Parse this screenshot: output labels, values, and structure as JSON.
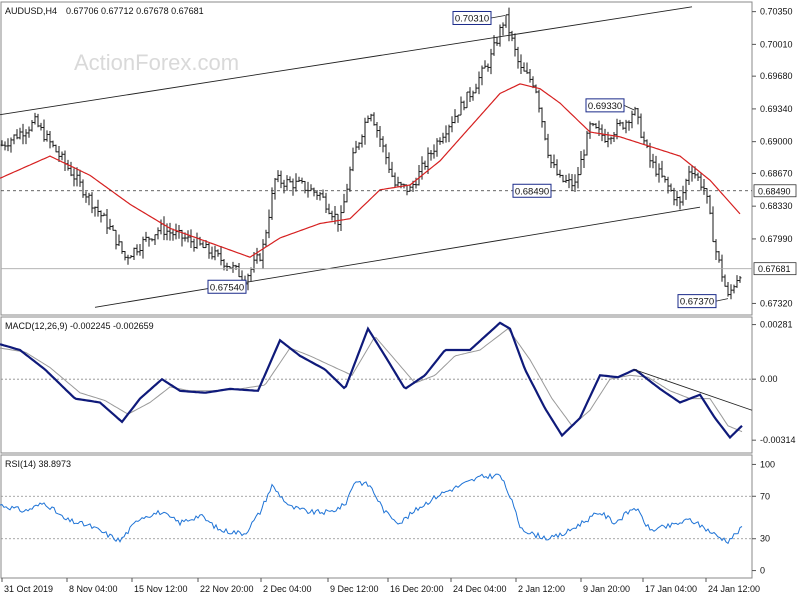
{
  "header": {
    "symbol_timeframe": "AUDUSD,H4",
    "ohlc": "0.67706 0.67712 0.67678 0.67681"
  },
  "watermark": "ActionForex.com",
  "colors": {
    "price": "#1a1a1a",
    "ma": "#d62020",
    "macd_line": "#0f1a7a",
    "signal": "#9a9a9a",
    "rsi": "#1e73d6",
    "grid": "#8c8c8c"
  },
  "chart_data": [
    {
      "type": "bar",
      "pane": "price",
      "title": "AUDUSD,H4",
      "ylim": [
        0.672,
        0.7045
      ],
      "y_ticks": [
        "0.70350",
        "0.70010",
        "0.69680",
        "0.69340",
        "0.69000",
        "0.68670",
        "0.68330",
        "0.67990",
        "0.67320"
      ],
      "x_ticks": [
        "31 Oct 2019",
        "8 Nov 04:00",
        "15 Nov 12:00",
        "22 Nov 20:00",
        "2 Dec 04:00",
        "9 Dec 12:00",
        "16 Dec 20:00",
        "24 Dec 04:00",
        "2 Jan 12:00",
        "9 Jan 20:00",
        "17 Jan 04:00",
        "24 Jan 12:00"
      ],
      "series": [
        {
          "name": "AUDUSD",
          "anchors": [
            [
              0,
              0.6895
            ],
            [
              35,
              0.692
            ],
            [
              70,
              0.687
            ],
            [
              110,
              0.681
            ],
            [
              125,
              0.678
            ],
            [
              160,
              0.681
            ],
            [
              195,
              0.6795
            ],
            [
              225,
              0.6775
            ],
            [
              245,
              0.6758
            ],
            [
              262,
              0.6785
            ],
            [
              275,
              0.686
            ],
            [
              300,
              0.6855
            ],
            [
              320,
              0.6845
            ],
            [
              340,
              0.6815
            ],
            [
              352,
              0.688
            ],
            [
              370,
              0.6935
            ],
            [
              395,
              0.6855
            ],
            [
              410,
              0.685
            ],
            [
              440,
              0.6905
            ],
            [
              470,
              0.695
            ],
            [
              490,
              0.6985
            ],
            [
              505,
              0.703
            ],
            [
              520,
              0.6975
            ],
            [
              535,
              0.696
            ],
            [
              550,
              0.688
            ],
            [
              560,
              0.686
            ],
            [
              575,
              0.6855
            ],
            [
              590,
              0.6915
            ],
            [
              605,
              0.6905
            ],
            [
              625,
              0.692
            ],
            [
              634,
              0.6933
            ],
            [
              650,
              0.688
            ],
            [
              670,
              0.685
            ],
            [
              680,
              0.6835
            ],
            [
              690,
              0.6875
            ],
            [
              705,
              0.685
            ],
            [
              715,
              0.679
            ],
            [
              728,
              0.6738
            ],
            [
              735,
              0.6755
            ],
            [
              742,
              0.6768
            ]
          ]
        },
        {
          "name": "MA",
          "anchors": [
            [
              0,
              0.6862
            ],
            [
              50,
              0.6885
            ],
            [
              90,
              0.6865
            ],
            [
              130,
              0.6835
            ],
            [
              170,
              0.681
            ],
            [
              210,
              0.6795
            ],
            [
              250,
              0.678
            ],
            [
              280,
              0.68
            ],
            [
              320,
              0.6815
            ],
            [
              350,
              0.682
            ],
            [
              380,
              0.685
            ],
            [
              410,
              0.6855
            ],
            [
              440,
              0.688
            ],
            [
              470,
              0.6915
            ],
            [
              500,
              0.695
            ],
            [
              520,
              0.696
            ],
            [
              540,
              0.6955
            ],
            [
              560,
              0.694
            ],
            [
              590,
              0.691
            ],
            [
              620,
              0.6905
            ],
            [
              650,
              0.6895
            ],
            [
              680,
              0.6885
            ],
            [
              710,
              0.686
            ],
            [
              740,
              0.6825
            ]
          ]
        }
      ],
      "annotations": [
        {
          "label": "0.70310",
          "x": 505,
          "value": 0.7031
        },
        {
          "label": "0.69330",
          "x": 634,
          "value": 0.6933
        },
        {
          "label": "0.68490",
          "x": 555,
          "value": 0.6849
        },
        {
          "label": "0.67540",
          "x": 245,
          "value": 0.6754
        },
        {
          "label": "0.67370",
          "x": 728,
          "value": 0.6737
        }
      ],
      "current_price_label": "0.67681",
      "level_label": "0.68490",
      "levels": [
        0.6849,
        0.67681
      ],
      "trendlines": [
        {
          "from": [
            0,
            0.6928
          ],
          "to": [
            692,
            0.704
          ]
        },
        {
          "from": [
            95,
            0.6728
          ],
          "to": [
            700,
            0.6832
          ]
        }
      ]
    },
    {
      "type": "line",
      "pane": "macd",
      "title": "MACD(12,26,9) -0.002245 -0.002659",
      "ylim": [
        -0.0038,
        0.0032
      ],
      "y_ticks": [
        "0.00281",
        "0.00",
        "-0.00314"
      ],
      "series": [
        {
          "name": "MACD",
          "anchors": [
            [
              0,
              0.0018
            ],
            [
              20,
              0.0015
            ],
            [
              45,
              0.0005
            ],
            [
              75,
              -0.001
            ],
            [
              100,
              -0.0012
            ],
            [
              122,
              -0.0022
            ],
            [
              140,
              -0.001
            ],
            [
              162,
              0.0
            ],
            [
              180,
              -0.0006
            ],
            [
              205,
              -0.0007
            ],
            [
              230,
              -0.0005
            ],
            [
              258,
              -0.0006
            ],
            [
              280,
              0.002
            ],
            [
              300,
              0.0012
            ],
            [
              325,
              0.0005
            ],
            [
              345,
              -0.0005
            ],
            [
              368,
              0.0026
            ],
            [
              385,
              0.0012
            ],
            [
              405,
              -0.0005
            ],
            [
              425,
              0.0002
            ],
            [
              445,
              0.0015
            ],
            [
              470,
              0.0015
            ],
            [
              500,
              0.0029
            ],
            [
              510,
              0.0026
            ],
            [
              525,
              0.0005
            ],
            [
              545,
              -0.0015
            ],
            [
              562,
              -0.0029
            ],
            [
              580,
              -0.002
            ],
            [
              600,
              0.0002
            ],
            [
              618,
              0.0001
            ],
            [
              635,
              0.0005
            ],
            [
              660,
              -0.0005
            ],
            [
              680,
              -0.0012
            ],
            [
              700,
              -0.0008
            ],
            [
              715,
              -0.002
            ],
            [
              730,
              -0.003
            ],
            [
              742,
              -0.0024
            ]
          ]
        },
        {
          "name": "Signal",
          "anchors": [
            [
              0,
              0.0016
            ],
            [
              25,
              0.0014
            ],
            [
              50,
              0.0006
            ],
            [
              80,
              -0.0007
            ],
            [
              105,
              -0.0011
            ],
            [
              128,
              -0.0018
            ],
            [
              150,
              -0.0012
            ],
            [
              170,
              -0.0004
            ],
            [
              190,
              -0.0006
            ],
            [
              215,
              -0.0006
            ],
            [
              240,
              -0.0005
            ],
            [
              265,
              -0.0003
            ],
            [
              290,
              0.0016
            ],
            [
              310,
              0.0012
            ],
            [
              335,
              0.0006
            ],
            [
              352,
              0.0002
            ],
            [
              375,
              0.0022
            ],
            [
              395,
              0.001
            ],
            [
              415,
              -0.0002
            ],
            [
              435,
              0.0002
            ],
            [
              455,
              0.0012
            ],
            [
              480,
              0.0015
            ],
            [
              508,
              0.0026
            ],
            [
              530,
              0.001
            ],
            [
              552,
              -0.001
            ],
            [
              572,
              -0.0024
            ],
            [
              590,
              -0.0016
            ],
            [
              610,
              0.0
            ],
            [
              630,
              0.0002
            ],
            [
              648,
              0.0001
            ],
            [
              670,
              -0.0006
            ],
            [
              690,
              -0.001
            ],
            [
              710,
              -0.001
            ],
            [
              728,
              -0.0024
            ],
            [
              742,
              -0.0027
            ]
          ]
        }
      ],
      "trendlines": [
        {
          "from": [
            634,
            0.0005
          ],
          "to": [
            752,
            -0.0016
          ]
        }
      ]
    },
    {
      "type": "line",
      "pane": "rsi",
      "title": "RSI(14) 38.8973",
      "ylim": [
        0,
        100
      ],
      "y_ticks": [
        "100",
        "70",
        "30",
        "0"
      ],
      "levels": [
        70,
        30
      ],
      "series": [
        {
          "name": "RSI",
          "anchors": [
            [
              0,
              62
            ],
            [
              25,
              56
            ],
            [
              45,
              64
            ],
            [
              65,
              48
            ],
            [
              90,
              42
            ],
            [
              120,
              28
            ],
            [
              140,
              50
            ],
            [
              160,
              55
            ],
            [
              180,
              45
            ],
            [
              200,
              52
            ],
            [
              220,
              38
            ],
            [
              245,
              35
            ],
            [
              260,
              55
            ],
            [
              272,
              80
            ],
            [
              290,
              60
            ],
            [
              310,
              55
            ],
            [
              330,
              55
            ],
            [
              345,
              62
            ],
            [
              355,
              85
            ],
            [
              370,
              80
            ],
            [
              385,
              55
            ],
            [
              400,
              45
            ],
            [
              420,
              60
            ],
            [
              440,
              72
            ],
            [
              460,
              80
            ],
            [
              480,
              88
            ],
            [
              500,
              90
            ],
            [
              510,
              70
            ],
            [
              520,
              42
            ],
            [
              530,
              35
            ],
            [
              550,
              30
            ],
            [
              565,
              35
            ],
            [
              580,
              44
            ],
            [
              600,
              55
            ],
            [
              615,
              45
            ],
            [
              635,
              60
            ],
            [
              650,
              38
            ],
            [
              670,
              42
            ],
            [
              690,
              48
            ],
            [
              705,
              40
            ],
            [
              718,
              32
            ],
            [
              728,
              28
            ],
            [
              742,
              40
            ]
          ]
        }
      ]
    }
  ]
}
